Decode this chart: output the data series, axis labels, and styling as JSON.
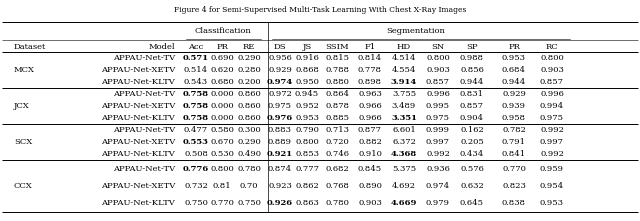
{
  "title": "Figure 4 for Semi-Supervised Multi-Task Learning With Chest X-Ray Images",
  "figsize": [
    6.4,
    2.21
  ],
  "dpi": 100,
  "font_size": 6.0,
  "groups": [
    {
      "name": "MCX",
      "rows": [
        {
          "model": "APPAU-Net-TV",
          "vals": [
            "0.571",
            "0.690",
            "0.290",
            "0.956",
            "0.916",
            "0.815",
            "0.814",
            "4.514",
            "0.800",
            "0.988",
            "0.953",
            "0.800"
          ],
          "bold": [
            true,
            false,
            false,
            false,
            false,
            false,
            false,
            false,
            false,
            false,
            false,
            false
          ]
        },
        {
          "model": "APPAU-Net-XETV",
          "vals": [
            "0.514",
            "0.620",
            "0.280",
            "0.929",
            "0.868",
            "0.788",
            "0.778",
            "4.554",
            "0.903",
            "0.856",
            "0.684",
            "0.903"
          ],
          "bold": [
            false,
            false,
            false,
            false,
            false,
            false,
            false,
            false,
            false,
            false,
            false,
            false
          ]
        },
        {
          "model": "APPAU-Net-KLTV",
          "vals": [
            "0.543",
            "0.680",
            "0.200",
            "0.974",
            "0.950",
            "0.880",
            "0.898",
            "3.914",
            "0.857",
            "0.944",
            "0.944",
            "0.857"
          ],
          "bold": [
            false,
            false,
            false,
            true,
            false,
            false,
            false,
            true,
            false,
            false,
            false,
            false
          ]
        }
      ]
    },
    {
      "name": "JCX",
      "rows": [
        {
          "model": "APPAU-Net-TV",
          "vals": [
            "0.758",
            "0.000",
            "0.860",
            "0.972",
            "0.945",
            "0.864",
            "0.963",
            "3.755",
            "0.996",
            "0.831",
            "0.929",
            "0.996"
          ],
          "bold": [
            true,
            false,
            false,
            false,
            false,
            false,
            false,
            false,
            false,
            false,
            false,
            false
          ]
        },
        {
          "model": "APPAU-Net-XETV",
          "vals": [
            "0.758",
            "0.000",
            "0.860",
            "0.975",
            "0.952",
            "0.878",
            "0.966",
            "3.489",
            "0.995",
            "0.857",
            "0.939",
            "0.994"
          ],
          "bold": [
            true,
            false,
            false,
            false,
            false,
            false,
            false,
            false,
            false,
            false,
            false,
            false
          ]
        },
        {
          "model": "APPAU-Net-KLTV",
          "vals": [
            "0.758",
            "0.000",
            "0.860",
            "0.976",
            "0.953",
            "0.885",
            "0.966",
            "3.351",
            "0.975",
            "0.904",
            "0.958",
            "0.975"
          ],
          "bold": [
            true,
            false,
            false,
            true,
            false,
            false,
            false,
            true,
            false,
            false,
            false,
            false
          ]
        }
      ]
    },
    {
      "name": "SCX",
      "rows": [
        {
          "model": "APPAU-Net-TV",
          "vals": [
            "0.477",
            "0.580",
            "0.300",
            "0.883",
            "0.790",
            "0.713",
            "0.877",
            "6.601",
            "0.999",
            "0.162",
            "0.782",
            "0.992"
          ],
          "bold": [
            false,
            false,
            false,
            false,
            false,
            false,
            false,
            false,
            false,
            false,
            false,
            false
          ]
        },
        {
          "model": "APPAU-Net-XETV",
          "vals": [
            "0.553",
            "0.670",
            "0.290",
            "0.889",
            "0.800",
            "0.720",
            "0.882",
            "6.372",
            "0.997",
            "0.205",
            "0.791",
            "0.997"
          ],
          "bold": [
            true,
            false,
            false,
            false,
            false,
            false,
            false,
            false,
            false,
            false,
            false,
            false
          ]
        },
        {
          "model": "APPAU-Net-KLTV",
          "vals": [
            "0.508",
            "0.530",
            "0.490",
            "0.921",
            "0.853",
            "0.746",
            "0.910",
            "4.368",
            "0.992",
            "0.434",
            "0.841",
            "0.992"
          ],
          "bold": [
            false,
            false,
            false,
            true,
            false,
            false,
            false,
            true,
            false,
            false,
            false,
            false
          ]
        }
      ]
    },
    {
      "name": "CCX",
      "rows": [
        {
          "model": "APPAU-Net-TV",
          "vals": [
            "0.776",
            "0.800",
            "0.780",
            "0.874",
            "0.777",
            "0.682",
            "0.845",
            "5.375",
            "0.936",
            "0.576",
            "0.770",
            "0.959"
          ],
          "bold": [
            true,
            false,
            false,
            false,
            false,
            false,
            false,
            false,
            false,
            false,
            false,
            false
          ]
        },
        {
          "model": "APPAU-Net-XETV",
          "vals": [
            "0.732",
            "0.81",
            "0.70",
            "0.923",
            "0.862",
            "0.768",
            "0.890",
            "4.692",
            "0.974",
            "0.632",
            "0.823",
            "0.954"
          ],
          "bold": [
            false,
            false,
            false,
            false,
            false,
            false,
            false,
            false,
            false,
            false,
            false,
            false
          ]
        },
        {
          "model": "APPAU-Net-KLTV",
          "vals": [
            "0.750",
            "0.770",
            "0.750",
            "0.926",
            "0.863",
            "0.780",
            "0.903",
            "4.669",
            "0.979",
            "0.645",
            "0.838",
            "0.953"
          ],
          "bold": [
            false,
            false,
            false,
            true,
            false,
            false,
            false,
            true,
            false,
            false,
            false,
            false
          ]
        }
      ]
    }
  ]
}
